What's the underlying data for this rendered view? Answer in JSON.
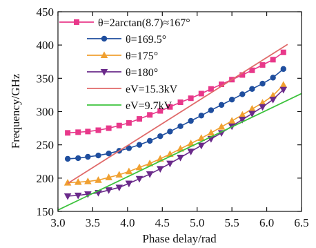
{
  "chart_data": {
    "type": "line",
    "title": "",
    "xlabel": "Phase delay/rad",
    "ylabel": "Frequency/GHz",
    "xlim": [
      3.0,
      6.5
    ],
    "ylim": [
      150,
      450
    ],
    "x_ticks": [
      3.0,
      3.5,
      4.0,
      4.5,
      5.0,
      5.5,
      6.0,
      6.5
    ],
    "y_ticks": [
      150,
      200,
      250,
      300,
      350,
      400,
      450
    ],
    "x_tick_labels": [
      "3.0",
      "3.5",
      "4.0",
      "4.5",
      "5.0",
      "5.5",
      "6.0",
      "6.5"
    ],
    "y_tick_labels": [
      "150",
      "200",
      "250",
      "300",
      "350",
      "400",
      "450"
    ],
    "grid": false,
    "legend_position": "top-left",
    "series": [
      {
        "name": "θ=2arctan(8.7)≈167°",
        "marker": "square",
        "color": "#e8388a",
        "x": [
          3.14,
          3.29,
          3.43,
          3.58,
          3.73,
          3.88,
          4.02,
          4.17,
          4.32,
          4.47,
          4.61,
          4.76,
          4.91,
          5.06,
          5.2,
          5.35,
          5.5,
          5.65,
          5.79,
          5.94,
          6.09,
          6.24
        ],
        "y": [
          268,
          269,
          270,
          272,
          275,
          279,
          283,
          289,
          295,
          301,
          307,
          314,
          320,
          327,
          334,
          341,
          348,
          355,
          362,
          370,
          378,
          389
        ]
      },
      {
        "name": "θ=169.5°",
        "marker": "circle",
        "color": "#1f4e9e",
        "x": [
          3.14,
          3.29,
          3.43,
          3.58,
          3.73,
          3.88,
          4.02,
          4.17,
          4.32,
          4.47,
          4.61,
          4.76,
          4.91,
          5.06,
          5.2,
          5.35,
          5.5,
          5.65,
          5.79,
          5.94,
          6.09,
          6.24
        ],
        "y": [
          229,
          230,
          232,
          234,
          237,
          241,
          245,
          250,
          256,
          263,
          270,
          278,
          286,
          294,
          302,
          310,
          318,
          326,
          334,
          342,
          351,
          364
        ]
      },
      {
        "name": "θ=175°",
        "marker": "triangle-up",
        "color": "#f0a030",
        "x": [
          3.14,
          3.29,
          3.43,
          3.58,
          3.73,
          3.88,
          4.02,
          4.17,
          4.32,
          4.47,
          4.61,
          4.76,
          4.91,
          5.06,
          5.2,
          5.35,
          5.5,
          5.65,
          5.79,
          5.94,
          6.09,
          6.24
        ],
        "y": [
          193,
          194,
          195,
          197,
          201,
          205,
          210,
          216,
          222,
          229,
          236,
          244,
          252,
          260,
          268,
          277,
          286,
          295,
          304,
          313,
          324,
          340
        ]
      },
      {
        "name": "θ=180°",
        "marker": "triangle-down",
        "color": "#6a2a8a",
        "x": [
          3.14,
          3.29,
          3.43,
          3.58,
          3.73,
          3.88,
          4.02,
          4.17,
          4.32,
          4.47,
          4.61,
          4.76,
          4.91,
          5.06,
          5.2,
          5.35,
          5.5,
          5.65,
          5.79,
          5.94,
          6.09,
          6.24
        ],
        "y": [
          173,
          174,
          176,
          178,
          182,
          186,
          192,
          199,
          206,
          214,
          222,
          231,
          240,
          249,
          259,
          268,
          278,
          288,
          297,
          307,
          318,
          333
        ]
      },
      {
        "name": "eV=15.3kV",
        "marker": "none",
        "color": "#e06a6a",
        "x": [
          3.14,
          6.3
        ],
        "y": [
          192,
          401
        ]
      },
      {
        "name": "eV=9.7kV",
        "marker": "none",
        "color": "#3cc23c",
        "x": [
          3.0,
          6.5
        ],
        "y": [
          152,
          327
        ]
      }
    ]
  }
}
